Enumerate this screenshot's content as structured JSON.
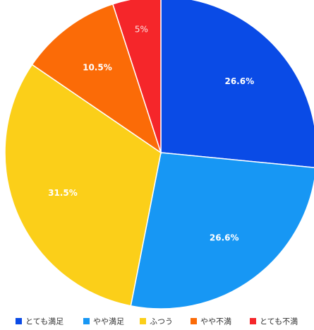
{
  "chart_data": {
    "type": "pie",
    "labels": [
      "とても満足",
      "やや満足",
      "ふつう",
      "やや不満",
      "とても不満"
    ],
    "values": [
      26.6,
      26.6,
      31.5,
      10.5,
      5
    ],
    "value_labels": [
      "26.6%",
      "26.6%",
      "31.5%",
      "10.5%",
      "5%"
    ],
    "colors": [
      "#0a4be6",
      "#1797f4",
      "#fbcf19",
      "#fb6b07",
      "#f5262a"
    ],
    "start_angle": "12 o'clock",
    "direction": "clockwise",
    "legend_position": "bottom"
  }
}
